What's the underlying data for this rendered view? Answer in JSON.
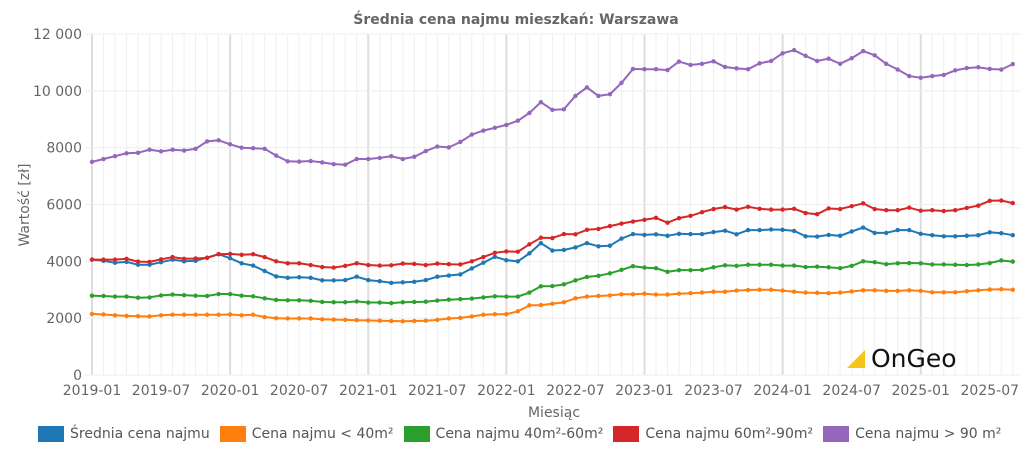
{
  "chart_data": {
    "type": "line",
    "title": "Średnia cena najmu mieszkań: Warszawa",
    "xlabel": "Miesiąc",
    "ylabel": "Wartość [zł]",
    "x_start": "2019-01",
    "x_end": "2025-09",
    "x_ticks": [
      "2019-01",
      "2019-07",
      "2020-01",
      "2020-07",
      "2021-01",
      "2021-07",
      "2022-01",
      "2022-07",
      "2023-01",
      "2023-07",
      "2024-01",
      "2024-07",
      "2025-01",
      "2025-07"
    ],
    "y_ticks": [
      "0",
      "2000",
      "4000",
      "6000",
      "8000",
      "10 000",
      "12 000"
    ],
    "ylim": [
      0,
      12000
    ],
    "grid": true,
    "legend_position": "bottom",
    "series": [
      {
        "name": "Średnia cena najmu",
        "color": "#1f77b4",
        "values": [
          4060,
          4020,
          3950,
          3980,
          3880,
          3880,
          3970,
          4060,
          4000,
          4020,
          4130,
          4250,
          4110,
          3930,
          3850,
          3660,
          3470,
          3420,
          3440,
          3420,
          3330,
          3330,
          3340,
          3460,
          3340,
          3300,
          3240,
          3260,
          3280,
          3340,
          3460,
          3500,
          3540,
          3750,
          3950,
          4160,
          4040,
          4000,
          4280,
          4640,
          4380,
          4400,
          4490,
          4640,
          4530,
          4550,
          4800,
          4960,
          4930,
          4950,
          4900,
          4970,
          4960,
          4960,
          5030,
          5080,
          4950,
          5100,
          5100,
          5120,
          5110,
          5070,
          4880,
          4870,
          4930,
          4900,
          5050,
          5190,
          5000,
          5000,
          5100,
          5100,
          4970,
          4920,
          4880,
          4880,
          4900,
          4920,
          5020,
          4990,
          4920
        ]
      },
      {
        "name": "Cena najmu < 40m²",
        "color": "#ff7f0e",
        "values": [
          2150,
          2130,
          2100,
          2080,
          2070,
          2060,
          2100,
          2120,
          2120,
          2120,
          2120,
          2120,
          2130,
          2100,
          2120,
          2040,
          2000,
          1990,
          1990,
          1990,
          1960,
          1950,
          1940,
          1930,
          1920,
          1910,
          1900,
          1890,
          1900,
          1910,
          1940,
          1990,
          2010,
          2060,
          2120,
          2140,
          2140,
          2240,
          2450,
          2460,
          2510,
          2560,
          2700,
          2760,
          2780,
          2800,
          2840,
          2840,
          2860,
          2830,
          2830,
          2860,
          2880,
          2900,
          2930,
          2930,
          2970,
          2990,
          3000,
          3000,
          2970,
          2930,
          2900,
          2890,
          2880,
          2900,
          2940,
          2980,
          2980,
          2960,
          2960,
          2980,
          2960,
          2910,
          2910,
          2910,
          2950,
          2980,
          3010,
          3020,
          3000
        ]
      },
      {
        "name": "Cena najmu 40m²-60m²",
        "color": "#2ca02c",
        "values": [
          2790,
          2780,
          2760,
          2760,
          2720,
          2730,
          2800,
          2830,
          2810,
          2790,
          2780,
          2850,
          2850,
          2790,
          2770,
          2700,
          2640,
          2630,
          2630,
          2610,
          2570,
          2560,
          2560,
          2590,
          2550,
          2550,
          2530,
          2560,
          2570,
          2580,
          2620,
          2650,
          2670,
          2690,
          2730,
          2770,
          2760,
          2760,
          2900,
          3120,
          3130,
          3190,
          3330,
          3450,
          3490,
          3580,
          3700,
          3830,
          3780,
          3760,
          3630,
          3690,
          3690,
          3700,
          3790,
          3860,
          3840,
          3880,
          3880,
          3880,
          3850,
          3850,
          3800,
          3810,
          3790,
          3760,
          3840,
          4000,
          3970,
          3900,
          3930,
          3940,
          3930,
          3890,
          3890,
          3880,
          3870,
          3890,
          3940,
          4030,
          3990
        ]
      },
      {
        "name": "Cena najmu 60m²-90m²",
        "color": "#d62728",
        "values": [
          4060,
          4060,
          4060,
          4090,
          3990,
          3980,
          4070,
          4150,
          4090,
          4100,
          4120,
          4250,
          4260,
          4230,
          4250,
          4150,
          4000,
          3930,
          3930,
          3870,
          3800,
          3780,
          3840,
          3930,
          3870,
          3850,
          3860,
          3920,
          3910,
          3870,
          3920,
          3900,
          3890,
          4000,
          4150,
          4300,
          4350,
          4340,
          4600,
          4830,
          4820,
          4960,
          4950,
          5110,
          5140,
          5240,
          5330,
          5400,
          5460,
          5530,
          5360,
          5520,
          5600,
          5730,
          5840,
          5910,
          5820,
          5920,
          5850,
          5820,
          5820,
          5850,
          5700,
          5660,
          5860,
          5840,
          5940,
          6040,
          5840,
          5800,
          5800,
          5890,
          5780,
          5800,
          5770,
          5800,
          5880,
          5960,
          6130,
          6140,
          6050
        ]
      },
      {
        "name": "Cena najmu > 90 m²",
        "color": "#9467bd",
        "values": [
          7500,
          7600,
          7700,
          7800,
          7820,
          7930,
          7870,
          7930,
          7900,
          7960,
          8220,
          8260,
          8120,
          8000,
          7980,
          7960,
          7720,
          7520,
          7510,
          7530,
          7480,
          7420,
          7400,
          7600,
          7600,
          7640,
          7700,
          7600,
          7680,
          7880,
          8040,
          8010,
          8200,
          8460,
          8600,
          8700,
          8800,
          8950,
          9220,
          9600,
          9330,
          9350,
          9820,
          10120,
          9820,
          9880,
          10280,
          10770,
          10760,
          10760,
          10730,
          11030,
          10910,
          10950,
          11040,
          10840,
          10790,
          10760,
          10970,
          11050,
          11320,
          11430,
          11230,
          11050,
          11130,
          10950,
          11150,
          11400,
          11250,
          10950,
          10750,
          10520,
          10460,
          10520,
          10560,
          10720,
          10800,
          10830,
          10770,
          10750,
          10940
        ]
      }
    ]
  },
  "logo": {
    "text": "OnGeo",
    "color": "#f5c518"
  }
}
